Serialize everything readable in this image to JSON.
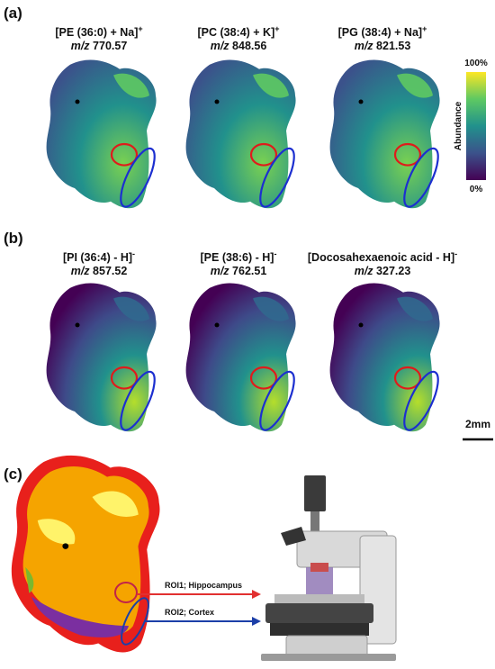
{
  "panels": [
    {
      "label": "(a)",
      "images": [
        {
          "title": "[PE (36:0) + Na]",
          "charge": "+",
          "mz_label": "m/z",
          "mz": "770.57"
        },
        {
          "title": "[PC (38:4) + K]",
          "charge": "+",
          "mz_label": "m/z",
          "mz": "848.56"
        },
        {
          "title": "[PG (38:4) + Na]",
          "charge": "+",
          "mz_label": "m/z",
          "mz": "821.53"
        }
      ]
    },
    {
      "label": "(b)",
      "images": [
        {
          "title": "[PI (36:4) - H]",
          "charge": "-",
          "mz_label": "m/z",
          "mz": "857.52"
        },
        {
          "title": "[PE (38:6) - H]",
          "charge": "-",
          "mz_label": "m/z",
          "mz": "762.51"
        },
        {
          "title": "[Docosahexaenoic acid - H]",
          "charge": "-",
          "mz_label": "m/z",
          "mz": "327.23"
        }
      ]
    }
  ],
  "colorbar": {
    "max": "100%",
    "min": "0%",
    "title": "Abundance"
  },
  "scale_bar": "2mm",
  "panel_c": {
    "label": "(c)",
    "roi1": "ROI1; Hippocampus",
    "roi2": "ROI2; Cortex"
  }
}
